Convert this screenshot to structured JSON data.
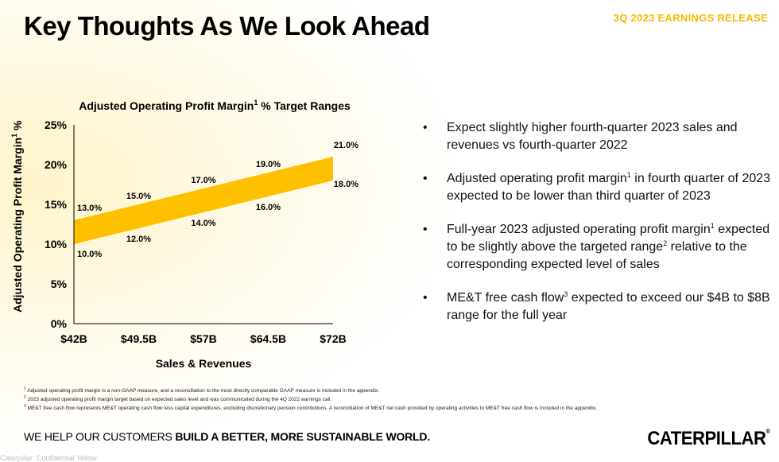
{
  "header": {
    "title": "Key Thoughts As We Look Ahead",
    "release_label": "3Q 2023 EARNINGS RELEASE",
    "accent_color": "#F9B800"
  },
  "chart_data": {
    "type": "area",
    "title": "Adjusted Operating Profit Margin",
    "title_sup": "1",
    "title_suffix": " % Target Ranges",
    "xlabel": "Sales & Revenues",
    "ylabel": "Adjusted Operating Profit Margin",
    "ylabel_sup": "1",
    "ylabel_suffix": " %",
    "categories": [
      "$42B",
      "$49.5B",
      "$57B",
      "$64.5B",
      "$72B"
    ],
    "x": [
      42,
      49.5,
      57,
      64.5,
      72
    ],
    "y_ticks": [
      "0%",
      "5%",
      "10%",
      "15%",
      "20%",
      "25%"
    ],
    "ylim": [
      0,
      25
    ],
    "band_color": "#FFC000",
    "series": [
      {
        "name": "upper",
        "values": [
          13.0,
          15.0,
          17.0,
          19.0,
          21.0
        ],
        "labels": [
          "13.0%",
          "15.0%",
          "17.0%",
          "19.0%",
          "21.0%"
        ]
      },
      {
        "name": "lower",
        "values": [
          10.0,
          12.0,
          14.0,
          16.0,
          18.0
        ],
        "labels": [
          "10.0%",
          "12.0%",
          "14.0%",
          "16.0%",
          "18.0%"
        ]
      }
    ],
    "grid": false,
    "legend": "none"
  },
  "bullets": [
    {
      "parts": [
        {
          "text": "Expect slightly higher fourth-quarter 2023 sales and revenues vs fourth-quarter 2022"
        }
      ]
    },
    {
      "parts": [
        {
          "text": "Adjusted operating profit margin"
        },
        {
          "sup": "1"
        },
        {
          "text": " in fourth quarter of 2023 expected to be lower than third quarter of 2023"
        }
      ]
    },
    {
      "parts": [
        {
          "text": "Full-year 2023 adjusted operating profit margin"
        },
        {
          "sup": "1"
        },
        {
          "text": " expected to be slightly above the targeted range"
        },
        {
          "sup": "2"
        },
        {
          "text": " relative to the corresponding expected level of sales"
        }
      ]
    },
    {
      "parts": [
        {
          "text": "ME&T free cash flow"
        },
        {
          "sup": "3"
        },
        {
          "text": " expected to exceed our $4B to $8B range for the full year"
        }
      ]
    }
  ],
  "footnotes": [
    {
      "num": "1",
      "text": "Adjusted operating profit margin is a non-GAAP measure, and a reconciliation to the most directly comparable GAAP measure is included in the appendix."
    },
    {
      "num": "2",
      "text": "2023 adjusted operating profit margin target based on expected sales level and was communicated during the 4Q 2022 earnings call."
    },
    {
      "num": "3",
      "text": "ME&T free cash flow represents ME&T operating cash flow less capital expenditures, excluding discretionary pension contributions. A reconciliation of ME&T net cash provided by operating activities to ME&T free cash flow is included in the appendix."
    }
  ],
  "footer": {
    "tagline_regular": "WE HELP OUR CUSTOMERS ",
    "tagline_bold": "BUILD A BETTER, MORE SUSTAINABLE WORLD.",
    "logo": "CATERPILLAR",
    "logo_mark": "®",
    "confidential": "Caterpillar: Confidential Yellow"
  }
}
